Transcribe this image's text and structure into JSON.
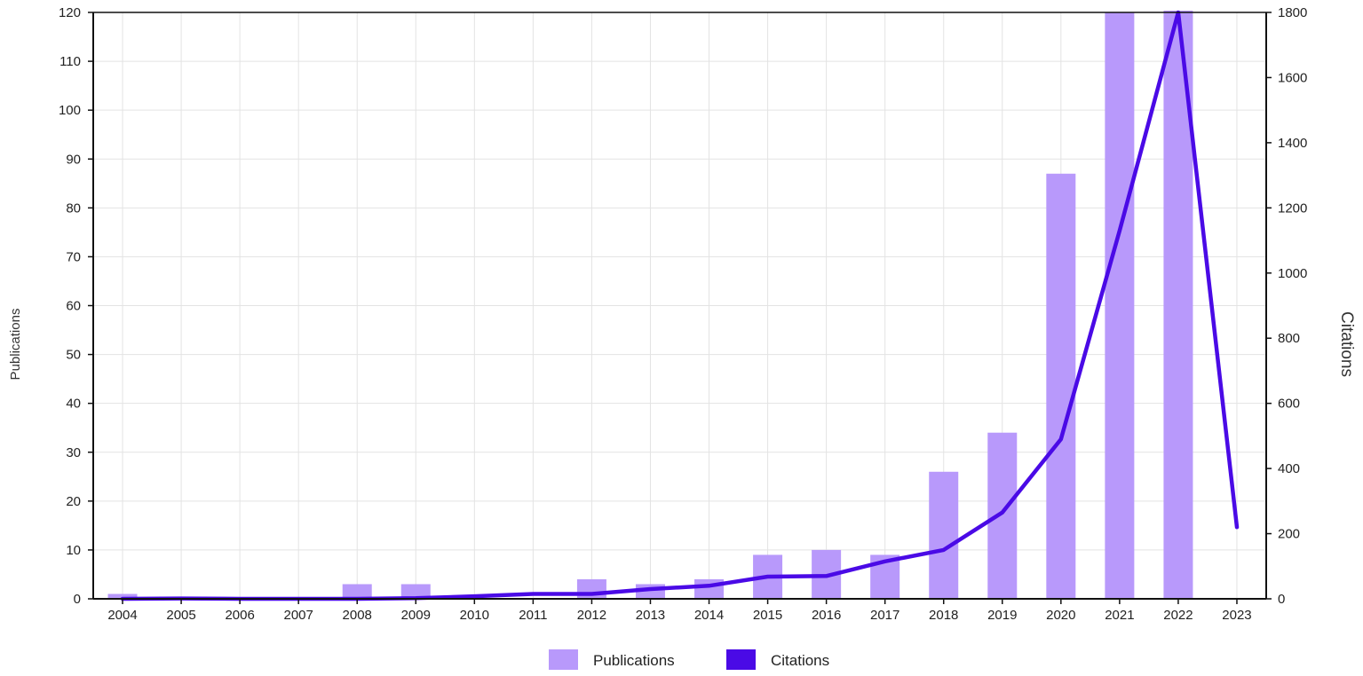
{
  "chart_data": {
    "type": "bar",
    "categories": [
      "2004",
      "2005",
      "2006",
      "2007",
      "2008",
      "2009",
      "2010",
      "2011",
      "2012",
      "2013",
      "2014",
      "2015",
      "2016",
      "2017",
      "2018",
      "2019",
      "2020",
      "2021",
      "2022",
      "2023"
    ],
    "series": [
      {
        "name": "Publications",
        "type": "bar",
        "axis": "left",
        "color": "#b899fb",
        "values": [
          1,
          0,
          0,
          0,
          3,
          3,
          0,
          0,
          4,
          3,
          4,
          9,
          10,
          9,
          26,
          34,
          87,
          120,
          122,
          0
        ]
      },
      {
        "name": "Citations",
        "type": "line",
        "axis": "right",
        "color": "#4a0ae6",
        "values": [
          0,
          1,
          0,
          0,
          0,
          2,
          8,
          15,
          15,
          30,
          40,
          68,
          70,
          115,
          150,
          265,
          490,
          1130,
          1800,
          220
        ]
      }
    ],
    "ylabel_left": "Publications",
    "ylabel_right": "Citations",
    "ylim_left": [
      0,
      120
    ],
    "ylim_right": [
      0,
      1800
    ],
    "yticks_left": [
      0,
      10,
      20,
      30,
      40,
      50,
      60,
      70,
      80,
      90,
      100,
      110,
      120
    ],
    "yticks_right": [
      0,
      200,
      400,
      600,
      800,
      1000,
      1200,
      1400,
      1600,
      1800
    ],
    "grid": true,
    "legend_position": "bottom-center",
    "grid_color": "#e3e3e3",
    "axis_color": "#111111"
  }
}
